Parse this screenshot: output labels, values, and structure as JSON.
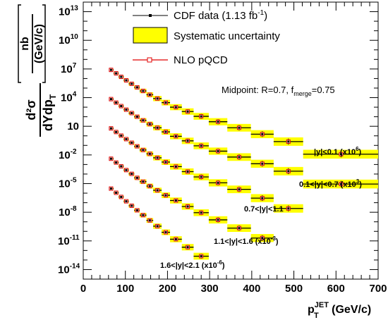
{
  "chart_data": {
    "type": "scatter",
    "x_axis": {
      "range": [
        0,
        700
      ],
      "ticks": [
        0,
        100,
        200,
        300,
        400,
        500,
        600,
        700
      ],
      "tick_labels": [
        "0",
        "100",
        "200",
        "300",
        "400",
        "500",
        "600",
        "700"
      ],
      "label_main": "p",
      "label_sub": "T",
      "label_sup": "JET",
      "label_unit": " (GeV/c)"
    },
    "y_axis": {
      "scale": "log",
      "range": [
        1e-15,
        100000000000000.0
      ],
      "ticks": [
        {
          "base": "10",
          "sup": "13",
          "value": 10000000000000.0
        },
        {
          "base": "10",
          "sup": "10",
          "value": 10000000000.0
        },
        {
          "base": "10",
          "sup": "7",
          "value": 10000000.0
        },
        {
          "base": "10",
          "sup": "4",
          "value": 10000.0
        },
        {
          "base": "10",
          "sup": "",
          "value": 10
        },
        {
          "base": "10",
          "sup": "-2",
          "value": 0.01
        },
        {
          "base": "10",
          "sup": "-5",
          "value": 1e-05
        },
        {
          "base": "10",
          "sup": "-8",
          "value": 1e-08
        },
        {
          "base": "10",
          "sup": "-11",
          "value": 1e-11
        },
        {
          "base": "10",
          "sup": "-14",
          "value": 1e-14
        }
      ],
      "label_numerator": "d²σ",
      "label_denominator": "dYdp",
      "label_denominator_sub": "T",
      "unit_numerator": "nb",
      "unit_denominator": "(GeV/c)"
    },
    "legend": [
      {
        "name": "CDF data (1.13 fb",
        "sup": "-1",
        "suffix": ")",
        "marker": "data"
      },
      {
        "name": "Systematic uncertainty",
        "marker": "band"
      },
      {
        "name": "NLO pQCD",
        "marker": "nlo"
      }
    ],
    "annotation": {
      "text": "Midpoint:  R=0.7, f",
      "sub": "merge",
      "suffix": "=0.75"
    },
    "series": [
      {
        "name": "|y|<0.1 (x10⁶)",
        "label": {
          "text": "|y|<0.1 (x10",
          "sup": "6",
          "suffix": ")"
        },
        "x": [
          66,
          78,
          90,
          102,
          115,
          128,
          142,
          158,
          176,
          196,
          220,
          248,
          280,
          320,
          370,
          425,
          487,
          612
        ],
        "x_low": [
          62,
          72,
          84,
          96,
          108,
          121,
          134,
          150,
          166,
          186,
          206,
          234,
          262,
          298,
          342,
          398,
          452,
          522
        ],
        "x_high": [
          72,
          84,
          96,
          108,
          121,
          134,
          150,
          166,
          186,
          206,
          234,
          262,
          298,
          342,
          398,
          452,
          522,
          700
        ],
        "y": [
          8000000.0,
          3500000.0,
          1500000.0,
          650000.0,
          280000.0,
          120000.0,
          50000.0,
          20000.0,
          8000.0,
          3000.0,
          1000.0,
          350.0,
          110.0,
          30,
          7,
          1.5,
          0.25,
          0.012
        ]
      },
      {
        "name": "0.1<|y|<0.7 (x10³)",
        "label": {
          "text": "0.1<|y|<0.7 (x10",
          "sup": "3",
          "suffix": ")"
        },
        "x": [
          66,
          78,
          90,
          102,
          115,
          128,
          142,
          158,
          176,
          196,
          220,
          248,
          280,
          320,
          370,
          425,
          487,
          612
        ],
        "x_low": [
          62,
          72,
          84,
          96,
          108,
          121,
          134,
          150,
          166,
          186,
          206,
          234,
          262,
          298,
          342,
          398,
          452,
          522
        ],
        "x_high": [
          72,
          84,
          96,
          108,
          121,
          134,
          150,
          166,
          186,
          206,
          234,
          262,
          298,
          342,
          398,
          452,
          522,
          700
        ],
        "y": [
          7000.0,
          3000.0,
          1300.0,
          550.0,
          240.0,
          100.0,
          42,
          17,
          7,
          2.6,
          0.9,
          0.3,
          0.09,
          0.025,
          0.006,
          0.0012,
          0.0002,
          9e-06
        ]
      },
      {
        "name": "0.7<|y|<1.1",
        "label": {
          "text": "0.7<|y|<1.1",
          "sup": "",
          "suffix": ""
        },
        "x": [
          66,
          78,
          90,
          102,
          115,
          128,
          142,
          158,
          176,
          196,
          220,
          248,
          280,
          320,
          370,
          425,
          487
        ],
        "x_low": [
          62,
          72,
          84,
          96,
          108,
          121,
          134,
          150,
          166,
          186,
          206,
          234,
          262,
          298,
          342,
          398,
          452
        ],
        "x_high": [
          72,
          84,
          96,
          108,
          121,
          134,
          150,
          166,
          186,
          206,
          234,
          262,
          298,
          342,
          398,
          452,
          522
        ],
        "y": [
          6,
          2.5,
          1.05,
          0.45,
          0.19,
          0.08,
          0.033,
          0.013,
          0.005,
          0.0018,
          0.0006,
          0.00018,
          5e-05,
          1.2e-05,
          2.5e-06,
          3e-07,
          2.5e-08
        ]
      },
      {
        "name": "1.1<|y|<1.6 (x10⁻³)",
        "label": {
          "text": "1.1<|y|<1.6 (x10",
          "sup": "-3",
          "suffix": ")"
        },
        "x": [
          66,
          78,
          90,
          102,
          115,
          128,
          142,
          158,
          176,
          196,
          220,
          248,
          280,
          320,
          370,
          425
        ],
        "x_low": [
          62,
          72,
          84,
          96,
          108,
          121,
          134,
          150,
          166,
          186,
          206,
          234,
          262,
          298,
          342,
          398
        ],
        "x_high": [
          72,
          84,
          96,
          108,
          121,
          134,
          150,
          166,
          186,
          206,
          234,
          262,
          298,
          342,
          398,
          452
        ],
        "y": [
          0.004,
          0.0016,
          0.00065,
          0.00026,
          0.000105,
          4e-05,
          1.6e-05,
          5.5e-06,
          2e-06,
          6e-07,
          1.7e-07,
          4e-08,
          9e-09,
          1.6e-09,
          2.2e-10,
          2e-11
        ]
      },
      {
        "name": "1.6<|y|<2.1 (x10⁻⁶)",
        "label": {
          "text": "1.6<|y|<2.1 (x10",
          "sup": "-6",
          "suffix": ")"
        },
        "x": [
          66,
          78,
          90,
          102,
          115,
          128,
          142,
          158,
          176,
          196,
          220,
          248,
          280
        ],
        "x_low": [
          62,
          72,
          84,
          96,
          108,
          121,
          134,
          150,
          166,
          186,
          206,
          234,
          262
        ],
        "x_high": [
          72,
          84,
          96,
          108,
          121,
          134,
          150,
          166,
          186,
          206,
          234,
          262,
          298
        ],
        "y": [
          3e-06,
          1.1e-06,
          4e-07,
          1.4e-07,
          4.8e-08,
          1.6e-08,
          5e-09,
          1.4e-09,
          3.5e-10,
          8e-11,
          1.5e-11,
          2.2e-12,
          2.5e-13
        ]
      }
    ]
  }
}
